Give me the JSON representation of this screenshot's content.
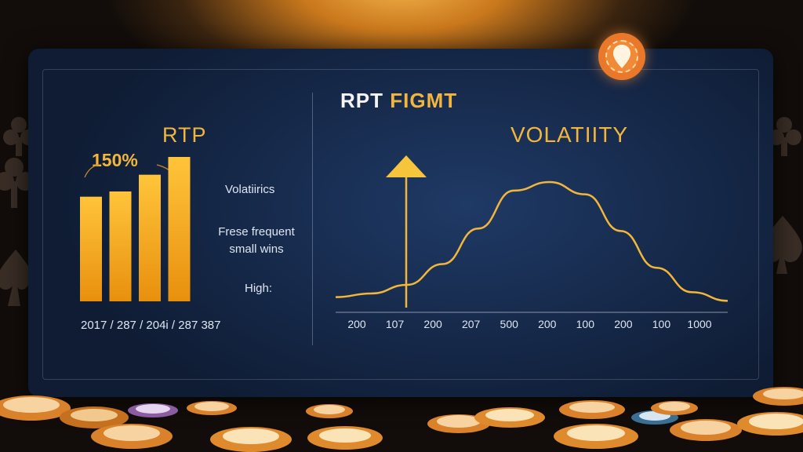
{
  "rtp_section": {
    "title": "RTP",
    "annotation": "150%",
    "bar_tick_labels": "2017 / 287 / 204i / 287 387",
    "labels": [
      "Volatiirics",
      "Frese frequent small wins",
      "High:"
    ]
  },
  "main_title": {
    "part1": "RPT",
    "part2": "FIGMT"
  },
  "volatility_section": {
    "title": "VOLATIITY"
  },
  "colors": {
    "accent": "#f2b63c",
    "panel": "#16294a",
    "text": "#dfe6f2",
    "badge": "#e9782a"
  },
  "icons": [
    "lightbulb-icon",
    "club-icon",
    "spade-icon",
    "poker-chip-icon"
  ],
  "chart_data": [
    {
      "type": "bar",
      "title": "RTP",
      "annotation": "150%",
      "tick_labels": "2017 / 287 / 204i / 287 387",
      "values": [
        100,
        105,
        121,
        138
      ],
      "ylim": [
        0,
        150
      ],
      "color": "#f2a61c"
    },
    {
      "type": "line",
      "title": "VOLATIITY",
      "x_tick_labels": [
        "200",
        "107",
        "200",
        "207",
        "500",
        "200",
        "100",
        "200",
        "100",
        "1000"
      ],
      "series": [
        {
          "values": [
            0.06,
            0.09,
            0.16,
            0.33,
            0.62,
            0.93,
            1.0,
            0.9,
            0.6,
            0.3,
            0.1,
            0.03
          ]
        }
      ],
      "ylim": [
        0,
        1
      ],
      "marker": {
        "type": "arrow-up",
        "at_fraction": 0.18
      },
      "color": "#f2b63c"
    }
  ]
}
